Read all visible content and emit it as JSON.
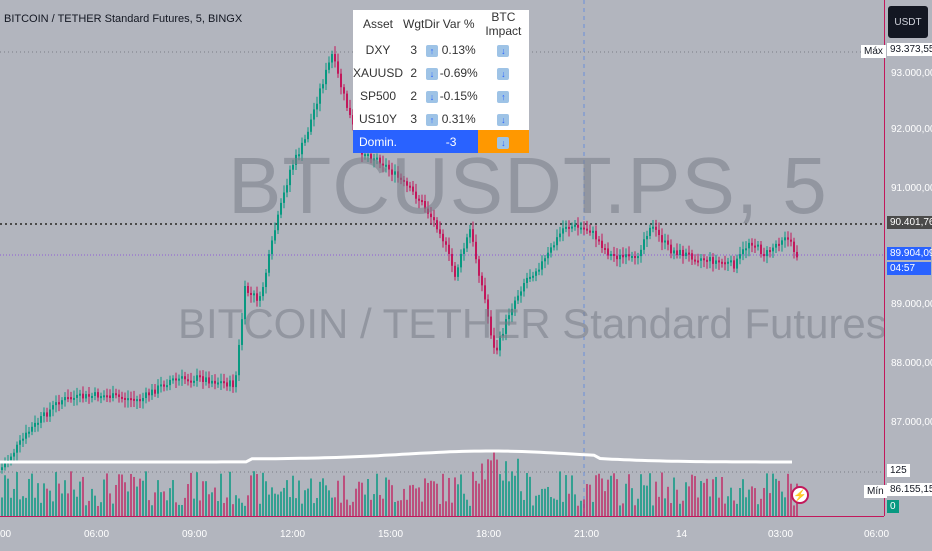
{
  "header": {
    "title": "BITCOIN / TETHER Standard Futures, 5, BINGX"
  },
  "watermark": {
    "symbol": "BTCUSDT.PS, 5",
    "name": "BITCOIN / TETHER Standard Futures"
  },
  "toolbar": {
    "currency": "USDT"
  },
  "price_axis": {
    "ticks": [
      "93.000,00",
      "92.000,00",
      "91.000,00",
      "89.000,00",
      "88.000,00",
      "87.000,00"
    ],
    "max_label": "Máx",
    "max_value": "93.373,55",
    "ref_value": "90.401,76",
    "last_value": "89.904,09",
    "countdown": "04:57",
    "min_label": "Mín",
    "min_value": "86.155,15",
    "volume_value": "125",
    "zero_value": "0"
  },
  "time_axis": {
    "ticks": [
      "00",
      "06:00",
      "09:00",
      "12:00",
      "15:00",
      "18:00",
      "21:00",
      "14",
      "03:00",
      "06:00"
    ]
  },
  "table": {
    "headers": [
      "Asset",
      "Wgt",
      "Dir",
      "Var %",
      "BTC Impact"
    ],
    "rows": [
      {
        "asset": "DXY",
        "wgt": "3",
        "dir": "up",
        "var": "0.13%",
        "impact": "down"
      },
      {
        "asset": "XAUUSD",
        "wgt": "2",
        "dir": "down",
        "var": "-0.69%",
        "impact": "down"
      },
      {
        "asset": "SP500",
        "wgt": "2",
        "dir": "down",
        "var": "-0.15%",
        "impact": "up"
      },
      {
        "asset": "US10Y",
        "wgt": "3",
        "dir": "up",
        "var": "0.31%",
        "impact": "down"
      }
    ],
    "dominance": {
      "label": "Domin.",
      "value": "-3",
      "impact": "down"
    }
  },
  "colors": {
    "up": "#089981",
    "down": "#c2185b",
    "accent": "#2962ff",
    "warning": "#ff9800"
  }
}
